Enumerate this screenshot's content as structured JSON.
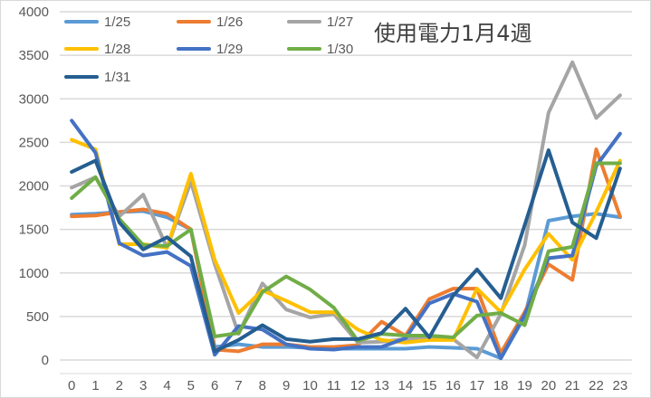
{
  "chart_data": {
    "type": "line",
    "title": "使用電力1月4週",
    "xlabel": "",
    "ylabel": "",
    "x": [
      0,
      1,
      2,
      3,
      4,
      5,
      6,
      7,
      8,
      9,
      10,
      11,
      12,
      13,
      14,
      15,
      16,
      17,
      18,
      19,
      20,
      21,
      22,
      23
    ],
    "ylim": [
      0,
      4000
    ],
    "yticks": [
      0,
      500,
      1000,
      1500,
      2000,
      2500,
      3000,
      3500,
      4000
    ],
    "grid": true,
    "legend": "top-left",
    "series": [
      {
        "name": "1/25",
        "color": "#5B9BD5",
        "values": [
          1670,
          1680,
          1700,
          1710,
          1640,
          1500,
          150,
          180,
          150,
          150,
          140,
          130,
          130,
          130,
          130,
          150,
          140,
          130,
          20,
          500,
          1600,
          1650,
          1680,
          1640
        ]
      },
      {
        "name": "1/26",
        "color": "#ED7D31",
        "values": [
          1650,
          1660,
          1700,
          1730,
          1680,
          1500,
          120,
          100,
          180,
          180,
          150,
          150,
          170,
          440,
          280,
          700,
          820,
          820,
          80,
          550,
          1100,
          920,
          2420,
          1650
        ]
      },
      {
        "name": "1/27",
        "color": "#A5A5A5",
        "values": [
          1980,
          2100,
          1650,
          1900,
          1290,
          2050,
          1100,
          300,
          880,
          580,
          490,
          530,
          200,
          210,
          240,
          250,
          240,
          30,
          530,
          1320,
          2840,
          3420,
          2780,
          3040
        ]
      },
      {
        "name": "1/28",
        "color": "#FFC000",
        "values": [
          2530,
          2420,
          1330,
          1330,
          1290,
          2140,
          1150,
          540,
          800,
          680,
          550,
          550,
          350,
          230,
          200,
          230,
          230,
          820,
          550,
          1040,
          1450,
          1150,
          1700,
          2290
        ]
      },
      {
        "name": "1/29",
        "color": "#4472C4",
        "values": [
          2750,
          2380,
          1340,
          1200,
          1240,
          1080,
          60,
          390,
          350,
          180,
          130,
          120,
          150,
          150,
          250,
          650,
          760,
          670,
          20,
          520,
          1170,
          1200,
          2230,
          2600
        ]
      },
      {
        "name": "1/30",
        "color": "#70AD47",
        "values": [
          1860,
          2100,
          1620,
          1320,
          1310,
          1500,
          270,
          310,
          780,
          960,
          810,
          600,
          220,
          300,
          280,
          280,
          260,
          510,
          540,
          400,
          1250,
          1300,
          2260,
          2260
        ]
      },
      {
        "name": "1/31",
        "color": "#255E91",
        "values": [
          2160,
          2290,
          1580,
          1270,
          1410,
          1190,
          100,
          230,
          400,
          240,
          210,
          240,
          240,
          310,
          590,
          260,
          740,
          1040,
          710,
          1550,
          2410,
          1580,
          1400,
          2200
        ]
      }
    ]
  }
}
